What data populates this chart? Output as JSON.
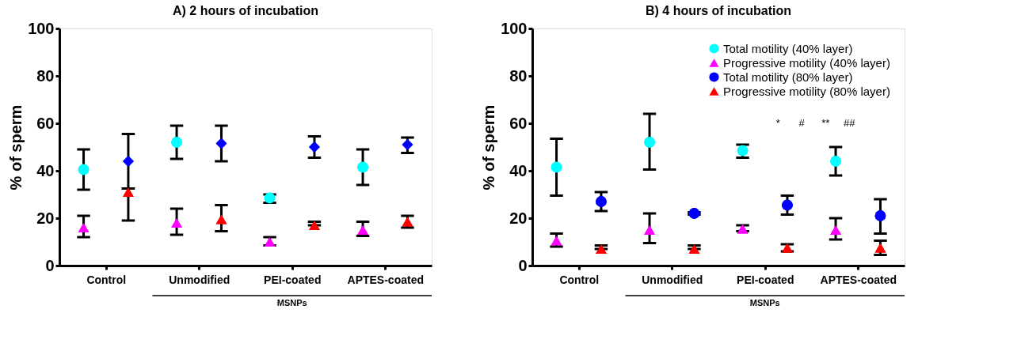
{
  "chart_data": [
    {
      "type": "scatter",
      "title": "A) 2 hours of incubation",
      "ylabel": "% of sperm",
      "categories": [
        "Control",
        "Unmodified",
        "PEI-coated",
        "APTES-coated"
      ],
      "ylim": [
        0,
        100
      ],
      "yticks": [
        0,
        20,
        40,
        60,
        80,
        100
      ],
      "grid": false,
      "legend": false,
      "series": [
        {
          "color": "#00ffff",
          "marker": "circle",
          "values": [
            40.5,
            52,
            28.5,
            41.5
          ],
          "errors": [
            [
              32,
              49
            ],
            [
              45,
              59
            ],
            [
              26.5,
              30
            ],
            [
              34,
              49
            ]
          ]
        },
        {
          "color": "#ff00ff",
          "marker": "triangle",
          "values": [
            16,
            18,
            10,
            15
          ],
          "errors": [
            [
              12,
              21
            ],
            [
              13,
              24
            ],
            [
              8.5,
              12
            ],
            [
              12.5,
              18.5
            ]
          ]
        },
        {
          "color": "#0000ff",
          "marker": "diamond",
          "values": [
            44,
            51.5,
            50,
            51
          ],
          "errors": [
            [
              32.5,
              55.5
            ],
            [
              44,
              59
            ],
            [
              45.5,
              54.5
            ],
            [
              47.5,
              54
            ]
          ]
        },
        {
          "color": "#ff0000",
          "marker": "triangle",
          "values": [
            31,
            19.5,
            17,
            18.5
          ],
          "errors": [
            [
              19,
              32.5
            ],
            [
              14.5,
              25.5
            ],
            [
              17,
              18.5
            ],
            [
              16,
              21
            ]
          ]
        }
      ],
      "annotations": [
        "MSNPs"
      ]
    },
    {
      "type": "scatter",
      "title": "B) 4 hours of incubation",
      "ylabel": "% of sperm",
      "categories": [
        "Control",
        "Unmodified",
        "PEI-coated",
        "APTES-coated"
      ],
      "ylim": [
        0,
        100
      ],
      "yticks": [
        0,
        20,
        40,
        60,
        80,
        100
      ],
      "grid": false,
      "legend": "top right",
      "series": [
        {
          "name": "Total motility (40% layer)",
          "color": "#00ffff",
          "marker": "circle",
          "values": [
            41.5,
            52,
            48.5,
            44
          ],
          "errors": [
            [
              29.5,
              53.5
            ],
            [
              40.5,
              64
            ],
            [
              45.5,
              51
            ],
            [
              38,
              50
            ]
          ]
        },
        {
          "name": "Progressive motility (40% layer)",
          "color": "#ff00ff",
          "marker": "triangle",
          "values": [
            10.5,
            15,
            15.5,
            15
          ],
          "errors": [
            [
              8,
              13.5
            ],
            [
              9.5,
              22
            ],
            [
              14.5,
              17
            ],
            [
              11,
              20
            ]
          ]
        },
        {
          "name": "Total motility (80% layer)",
          "color": "#0000ff",
          "marker": "circle",
          "values": [
            27,
            22,
            25.5,
            21
          ],
          "errors": [
            [
              23,
              31
            ],
            [
              21.5,
              22.5
            ],
            [
              21.5,
              29.5
            ],
            [
              13.5,
              28
            ]
          ]
        },
        {
          "name": "Progressive motility (80% layer)",
          "color": "#ff0000",
          "marker": "triangle",
          "values": [
            7,
            7,
            7.5,
            7.5
          ],
          "errors": [
            [
              7,
              8.5
            ],
            [
              7,
              8.5
            ],
            [
              6,
              9
            ],
            [
              4.5,
              10.5
            ]
          ]
        }
      ],
      "annotations": [
        "MSNPs",
        "*",
        "#",
        "**",
        "##"
      ]
    }
  ]
}
